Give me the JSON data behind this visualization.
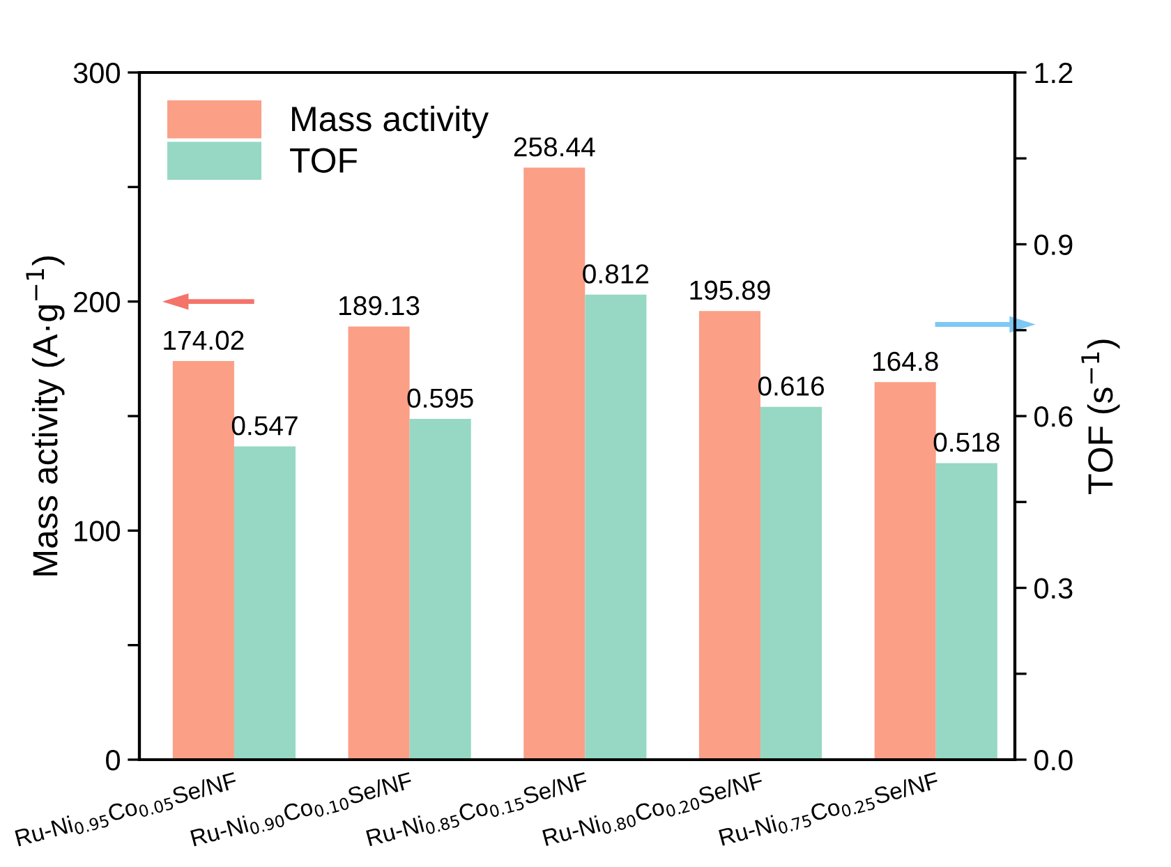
{
  "chart_data": {
    "type": "bar",
    "categories": [
      "Ru-Ni$_{0.95}$Co$_{0.05}$Se/NF",
      "Ru-Ni$_{0.90}$Co$_{0.10}$Se/NF",
      "Ru-Ni$_{0.85}$Co$_{0.15}$Se/NF",
      "Ru-Ni$_{0.80}$Co$_{0.20}$Se/NF",
      "Ru-Ni$_{0.75}$Co$_{0.25}$Se/NF"
    ],
    "series": [
      {
        "name": "Mass activity",
        "color": "#fb9f86",
        "values": [
          174.02,
          189.13,
          258.44,
          195.89,
          164.8
        ]
      },
      {
        "name": "TOF",
        "color": "#96d8c4",
        "axis": "y2",
        "values": [
          0.547,
          0.595,
          0.812,
          0.616,
          0.518
        ]
      }
    ],
    "ylabel": "Mass activity (A·g$^{−1}$)",
    "y2label": "TOF (s$^{−1}$)",
    "ylim": [
      0,
      300
    ],
    "yticks": [
      0,
      {
        "value": 50,
        "label": null
      },
      100,
      {
        "value": 150,
        "label": null
      },
      200,
      {
        "value": 250,
        "label": null
      },
      300
    ],
    "y2lim": [
      0,
      1.2
    ],
    "y2ticks": [
      {
        "value": 0,
        "label": "0.0"
      },
      {
        "value": 0.15,
        "label": null
      },
      0.3,
      {
        "value": 0.45,
        "label": null
      },
      0.6,
      {
        "value": 0.75,
        "label": null
      },
      0.9,
      {
        "value": 1.05,
        "label": null
      },
      1.2
    ],
    "data_labels": true,
    "legend": "top left",
    "grid": false
  }
}
